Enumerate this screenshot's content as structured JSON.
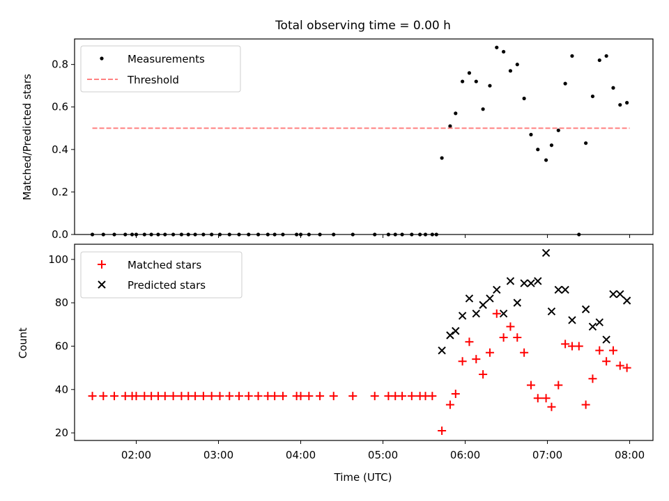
{
  "figure": {
    "title": "Total observing time = 0.00 h",
    "xlabel": "Time (UTC)"
  },
  "chart_data": [
    {
      "type": "scatter",
      "ylabel": "Matched/Predicted stars",
      "xlim": [
        "01:15",
        "08:17"
      ],
      "ylim": [
        0,
        0.92
      ],
      "yticks": [
        0.0,
        0.2,
        0.4,
        0.6,
        0.8
      ],
      "ytick_labels": [
        "0.0",
        "0.2",
        "0.4",
        "0.6",
        "0.8"
      ],
      "legend": {
        "placement": "upper-left",
        "entries": [
          "Measurements",
          "Threshold"
        ]
      },
      "series": [
        {
          "name": "Measurements",
          "marker": "dot",
          "color": "#000000",
          "points": [
            [
              "01:28",
              0
            ],
            [
              "01:36",
              0
            ],
            [
              "01:44",
              0
            ],
            [
              "01:52",
              0
            ],
            [
              "01:57",
              0
            ],
            [
              "02:00",
              0
            ],
            [
              "02:06",
              0
            ],
            [
              "02:11",
              0
            ],
            [
              "02:16",
              0
            ],
            [
              "02:21",
              0
            ],
            [
              "02:27",
              0
            ],
            [
              "02:33",
              0
            ],
            [
              "02:38",
              0
            ],
            [
              "02:43",
              0
            ],
            [
              "02:49",
              0
            ],
            [
              "02:55",
              0
            ],
            [
              "03:01",
              0
            ],
            [
              "03:08",
              0
            ],
            [
              "03:15",
              0
            ],
            [
              "03:22",
              0
            ],
            [
              "03:29",
              0
            ],
            [
              "03:36",
              0
            ],
            [
              "03:41",
              0
            ],
            [
              "03:47",
              0
            ],
            [
              "03:57",
              0
            ],
            [
              "04:00",
              0
            ],
            [
              "04:06",
              0
            ],
            [
              "04:14",
              0
            ],
            [
              "04:24",
              0
            ],
            [
              "04:38",
              0
            ],
            [
              "04:54",
              0
            ],
            [
              "05:04",
              0
            ],
            [
              "05:09",
              0
            ],
            [
              "05:14",
              0
            ],
            [
              "05:21",
              0
            ],
            [
              "05:27",
              0
            ],
            [
              "05:31",
              0
            ],
            [
              "05:36",
              0
            ],
            [
              "05:39",
              0
            ],
            [
              "05:43",
              0.36
            ],
            [
              "05:49",
              0.51
            ],
            [
              "05:53",
              0.57
            ],
            [
              "05:58",
              0.72
            ],
            [
              "06:03",
              0.76
            ],
            [
              "06:08",
              0.72
            ],
            [
              "06:13",
              0.59
            ],
            [
              "06:18",
              0.7
            ],
            [
              "06:23",
              0.88
            ],
            [
              "06:28",
              0.86
            ],
            [
              "06:33",
              0.77
            ],
            [
              "06:38",
              0.8
            ],
            [
              "06:43",
              0.64
            ],
            [
              "06:48",
              0.47
            ],
            [
              "06:53",
              0.4
            ],
            [
              "06:59",
              0.35
            ],
            [
              "07:03",
              0.42
            ],
            [
              "07:08",
              0.49
            ],
            [
              "07:13",
              0.71
            ],
            [
              "07:18",
              0.84
            ],
            [
              "07:23",
              0.0
            ],
            [
              "07:28",
              0.43
            ],
            [
              "07:33",
              0.65
            ],
            [
              "07:38",
              0.82
            ],
            [
              "07:43",
              0.84
            ],
            [
              "07:48",
              0.69
            ],
            [
              "07:53",
              0.61
            ],
            [
              "07:58",
              0.62
            ]
          ]
        },
        {
          "name": "Threshold",
          "style": "dashed",
          "color": "#ff8080",
          "y": 0.5,
          "x_range": [
            "01:28",
            "08:00"
          ]
        }
      ]
    },
    {
      "type": "scatter",
      "ylabel": "Count",
      "xlim": [
        "01:15",
        "08:17"
      ],
      "ylim": [
        16.5,
        107
      ],
      "yticks": [
        20,
        40,
        60,
        80,
        100
      ],
      "ytick_labels": [
        "20",
        "40",
        "60",
        "80",
        "100"
      ],
      "xticks": [
        "02:00",
        "03:00",
        "04:00",
        "05:00",
        "06:00",
        "07:00",
        "08:00"
      ],
      "xtick_labels": [
        "02:00",
        "03:00",
        "04:00",
        "05:00",
        "06:00",
        "07:00",
        "08:00"
      ],
      "legend": {
        "placement": "upper-left",
        "entries": [
          "Matched stars",
          "Predicted stars"
        ]
      },
      "series": [
        {
          "name": "Matched stars",
          "marker": "plus",
          "color": "#ff0000",
          "points": [
            [
              "01:28",
              37
            ],
            [
              "01:36",
              37
            ],
            [
              "01:44",
              37
            ],
            [
              "01:52",
              37
            ],
            [
              "01:57",
              37
            ],
            [
              "02:00",
              37
            ],
            [
              "02:06",
              37
            ],
            [
              "02:11",
              37
            ],
            [
              "02:16",
              37
            ],
            [
              "02:21",
              37
            ],
            [
              "02:27",
              37
            ],
            [
              "02:33",
              37
            ],
            [
              "02:38",
              37
            ],
            [
              "02:43",
              37
            ],
            [
              "02:49",
              37
            ],
            [
              "02:55",
              37
            ],
            [
              "03:01",
              37
            ],
            [
              "03:08",
              37
            ],
            [
              "03:15",
              37
            ],
            [
              "03:22",
              37
            ],
            [
              "03:29",
              37
            ],
            [
              "03:36",
              37
            ],
            [
              "03:41",
              37
            ],
            [
              "03:47",
              37
            ],
            [
              "03:57",
              37
            ],
            [
              "04:00",
              37
            ],
            [
              "04:06",
              37
            ],
            [
              "04:14",
              37
            ],
            [
              "04:24",
              37
            ],
            [
              "04:38",
              37
            ],
            [
              "04:54",
              37
            ],
            [
              "05:04",
              37
            ],
            [
              "05:09",
              37
            ],
            [
              "05:14",
              37
            ],
            [
              "05:21",
              37
            ],
            [
              "05:27",
              37
            ],
            [
              "05:31",
              37
            ],
            [
              "05:36",
              37
            ],
            [
              "05:43",
              21
            ],
            [
              "05:49",
              33
            ],
            [
              "05:53",
              38
            ],
            [
              "05:58",
              53
            ],
            [
              "06:03",
              62
            ],
            [
              "06:08",
              54
            ],
            [
              "06:13",
              47
            ],
            [
              "06:18",
              57
            ],
            [
              "06:23",
              75
            ],
            [
              "06:28",
              64
            ],
            [
              "06:33",
              69
            ],
            [
              "06:38",
              64
            ],
            [
              "06:43",
              57
            ],
            [
              "06:48",
              42
            ],
            [
              "06:53",
              36
            ],
            [
              "06:59",
              36
            ],
            [
              "07:03",
              32
            ],
            [
              "07:08",
              42
            ],
            [
              "07:13",
              61
            ],
            [
              "07:18",
              60
            ],
            [
              "07:23",
              60
            ],
            [
              "07:28",
              33
            ],
            [
              "07:33",
              45
            ],
            [
              "07:38",
              58
            ],
            [
              "07:43",
              53
            ],
            [
              "07:48",
              58
            ],
            [
              "07:53",
              51
            ],
            [
              "07:58",
              50
            ]
          ]
        },
        {
          "name": "Predicted stars",
          "marker": "x",
          "color": "#000000",
          "points": [
            [
              "05:43",
              58
            ],
            [
              "05:49",
              65
            ],
            [
              "05:53",
              67
            ],
            [
              "05:58",
              74
            ],
            [
              "06:03",
              82
            ],
            [
              "06:08",
              75
            ],
            [
              "06:13",
              79
            ],
            [
              "06:18",
              82
            ],
            [
              "06:23",
              86
            ],
            [
              "06:28",
              75
            ],
            [
              "06:33",
              90
            ],
            [
              "06:38",
              80
            ],
            [
              "06:43",
              89
            ],
            [
              "06:48",
              89
            ],
            [
              "06:53",
              90
            ],
            [
              "06:59",
              103
            ],
            [
              "07:03",
              76
            ],
            [
              "07:08",
              86
            ],
            [
              "07:13",
              86
            ],
            [
              "07:18",
              72
            ],
            [
              "07:28",
              77
            ],
            [
              "07:33",
              69
            ],
            [
              "07:38",
              71
            ],
            [
              "07:43",
              63
            ],
            [
              "07:48",
              84
            ],
            [
              "07:53",
              84
            ],
            [
              "07:58",
              81
            ]
          ]
        }
      ]
    }
  ]
}
